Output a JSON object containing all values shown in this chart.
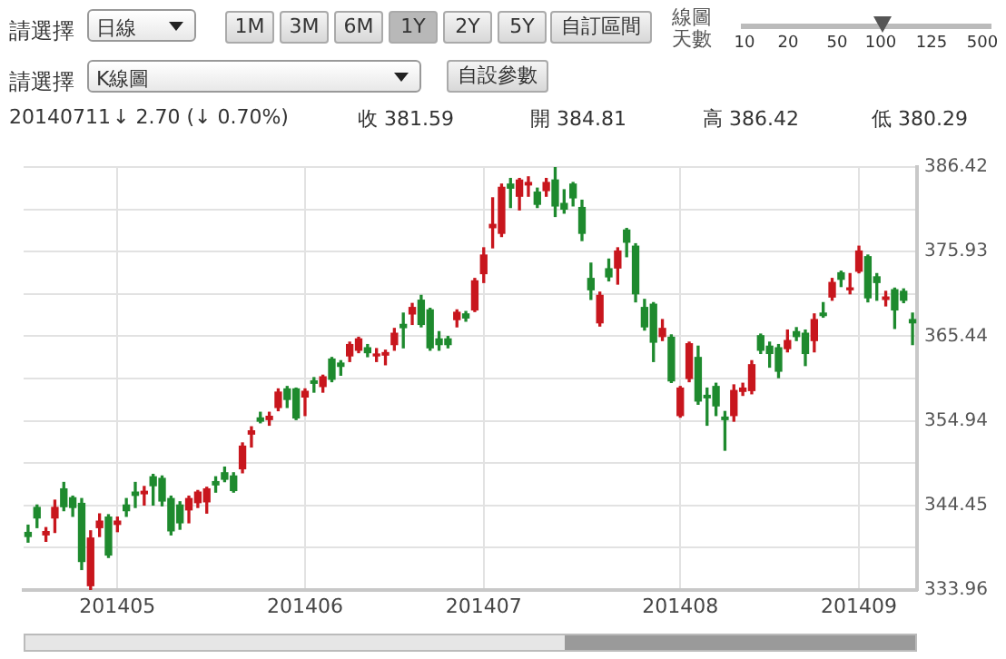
{
  "chart_data": {
    "type": "candlestick",
    "categories": [
      null,
      null,
      null,
      null,
      null,
      null,
      null,
      null,
      null,
      null,
      "201405",
      null,
      null,
      null,
      null,
      null,
      null,
      null,
      null,
      null,
      null,
      null,
      null,
      null,
      null,
      null,
      null,
      null,
      null,
      null,
      null,
      "201406",
      null,
      null,
      null,
      null,
      null,
      null,
      null,
      null,
      null,
      null,
      null,
      null,
      null,
      null,
      null,
      null,
      null,
      null,
      null,
      "201407",
      null,
      null,
      null,
      null,
      null,
      null,
      null,
      null,
      null,
      null,
      null,
      null,
      null,
      null,
      null,
      null,
      null,
      null,
      null,
      null,
      null,
      "201408",
      null,
      null,
      null,
      null,
      null,
      null,
      null,
      null,
      null,
      null,
      null,
      null,
      null,
      null,
      null,
      null,
      null,
      null,
      null,
      "201409",
      null,
      null,
      null,
      null,
      null,
      null
    ],
    "ohlc": [
      [
        341.1,
        342.0,
        339.9,
        340.6
      ],
      [
        344.2,
        344.5,
        341.7,
        342.9
      ],
      [
        340.8,
        341.7,
        340.0,
        341.2
      ],
      [
        342.9,
        345.1,
        341.1,
        344.2
      ],
      [
        346.5,
        347.3,
        343.8,
        344.3
      ],
      [
        345.4,
        345.6,
        343.1,
        344.2
      ],
      [
        344.7,
        345.3,
        336.5,
        337.5
      ],
      [
        334.5,
        341.3,
        334.0,
        340.4
      ],
      [
        341.7,
        343.4,
        340.6,
        342.5
      ],
      [
        343.0,
        343.3,
        338.0,
        338.3
      ],
      [
        342.1,
        343.0,
        341.2,
        342.5
      ],
      [
        344.5,
        345.3,
        343.1,
        343.8
      ],
      [
        346.1,
        347.3,
        344.2,
        345.7
      ],
      [
        345.9,
        346.8,
        344.5,
        346.2
      ],
      [
        348.0,
        348.3,
        344.5,
        346.9
      ],
      [
        347.8,
        348.1,
        344.4,
        345.0
      ],
      [
        345.3,
        345.6,
        340.8,
        341.3
      ],
      [
        344.5,
        344.9,
        341.5,
        342.3
      ],
      [
        343.9,
        345.6,
        342.3,
        345.3
      ],
      [
        344.8,
        346.3,
        344.2,
        346.1
      ],
      [
        344.9,
        346.7,
        343.5,
        346.5
      ],
      [
        347.4,
        348.0,
        346.1,
        347.0
      ],
      [
        348.5,
        349.2,
        347.4,
        347.7
      ],
      [
        348.1,
        348.5,
        346.1,
        346.3
      ],
      [
        349.0,
        352.2,
        348.5,
        351.8
      ],
      [
        353.3,
        354.2,
        351.7,
        353.7
      ],
      [
        355.3,
        356.0,
        354.7,
        354.9
      ],
      [
        355.1,
        356.0,
        354.4,
        355.5
      ],
      [
        356.6,
        358.9,
        356.2,
        358.5
      ],
      [
        358.9,
        359.2,
        356.6,
        357.6
      ],
      [
        358.9,
        359.0,
        355.1,
        355.3
      ],
      [
        357.9,
        358.9,
        355.6,
        358.6
      ],
      [
        359.9,
        360.3,
        358.5,
        359.6
      ],
      [
        359.2,
        360.6,
        358.5,
        360.4
      ],
      [
        362.6,
        362.8,
        359.8,
        360.1
      ],
      [
        362.1,
        362.4,
        360.6,
        361.7
      ],
      [
        363.0,
        364.7,
        362.3,
        364.4
      ],
      [
        363.7,
        365.3,
        363.4,
        365.1
      ],
      [
        364.0,
        364.4,
        362.9,
        363.4
      ],
      [
        363.0,
        363.9,
        362.3,
        363.2
      ],
      [
        363.1,
        363.7,
        361.9,
        363.4
      ],
      [
        364.4,
        366.4,
        363.7,
        365.8
      ],
      [
        366.9,
        368.3,
        364.0,
        366.5
      ],
      [
        368.2,
        369.5,
        366.9,
        369.0
      ],
      [
        369.9,
        370.5,
        366.6,
        366.9
      ],
      [
        368.7,
        368.9,
        363.7,
        364.0
      ],
      [
        365.1,
        366.0,
        363.7,
        364.4
      ],
      [
        365.1,
        365.4,
        364.0,
        364.4
      ],
      [
        367.5,
        368.7,
        366.6,
        368.4
      ],
      [
        368.2,
        368.5,
        367.3,
        367.7
      ],
      [
        368.7,
        372.6,
        368.5,
        372.3
      ],
      [
        373.2,
        376.4,
        372.1,
        375.5
      ],
      [
        378.9,
        382.6,
        376.4,
        379.3
      ],
      [
        378.2,
        384.3,
        377.8,
        383.9
      ],
      [
        384.3,
        385.0,
        381.4,
        383.8
      ],
      [
        382.8,
        385.0,
        381.1,
        384.8
      ],
      [
        384.2,
        385.2,
        382.8,
        384.5
      ],
      [
        383.3,
        383.8,
        381.4,
        381.8
      ],
      [
        383.5,
        385.0,
        382.8,
        384.5
      ],
      [
        384.81,
        386.42,
        380.29,
        381.59
      ],
      [
        381.9,
        383.6,
        380.7,
        381.2
      ],
      [
        384.3,
        384.5,
        381.6,
        382.6
      ],
      [
        381.4,
        382.3,
        377.3,
        378.2
      ],
      [
        372.6,
        374.5,
        370.0,
        371.2
      ],
      [
        367.1,
        370.9,
        366.7,
        370.5
      ],
      [
        373.8,
        375.0,
        372.3,
        372.8
      ],
      [
        373.9,
        376.4,
        371.9,
        376.0
      ],
      [
        378.6,
        378.8,
        375.3,
        377.1
      ],
      [
        376.6,
        376.9,
        369.7,
        370.7
      ],
      [
        369.0,
        370.0,
        366.2,
        366.6
      ],
      [
        369.4,
        369.6,
        362.3,
        364.7
      ],
      [
        365.4,
        367.5,
        364.9,
        366.4
      ],
      [
        365.3,
        365.6,
        359.7,
        359.9
      ],
      [
        355.6,
        359.2,
        355.4,
        359.0
      ],
      [
        360.2,
        364.7,
        359.8,
        364.5
      ],
      [
        362.8,
        364.2,
        357.0,
        357.4
      ],
      [
        358.1,
        359.0,
        354.4,
        357.8
      ],
      [
        359.2,
        359.6,
        355.6,
        356.8
      ],
      [
        355.4,
        356.1,
        351.3,
        355.1
      ],
      [
        355.6,
        359.4,
        354.9,
        358.7
      ],
      [
        358.6,
        359.6,
        358.1,
        359.0
      ],
      [
        358.7,
        362.4,
        358.3,
        361.9
      ],
      [
        365.5,
        365.7,
        363.3,
        363.7
      ],
      [
        364.2,
        364.7,
        361.6,
        363.3
      ],
      [
        364.0,
        364.4,
        360.3,
        361.1
      ],
      [
        363.9,
        366.2,
        363.5,
        364.9
      ],
      [
        366.0,
        366.5,
        364.9,
        365.4
      ],
      [
        365.8,
        366.2,
        361.8,
        363.3
      ],
      [
        364.9,
        368.2,
        363.5,
        367.5
      ],
      [
        368.3,
        369.6,
        367.8,
        368.0
      ],
      [
        370.3,
        372.6,
        369.9,
        372.1
      ],
      [
        373.3,
        373.5,
        371.6,
        372.5
      ],
      [
        371.2,
        373.2,
        370.7,
        371.4
      ],
      [
        373.5,
        376.6,
        373.3,
        376.0
      ],
      [
        375.3,
        375.5,
        369.7,
        370.2
      ],
      [
        372.8,
        373.2,
        369.9,
        372.1
      ],
      [
        370.0,
        371.0,
        369.2,
        370.3
      ],
      [
        371.2,
        371.4,
        366.4,
        368.7
      ],
      [
        371.0,
        371.3,
        369.6,
        369.9
      ],
      [
        367.5,
        368.3,
        364.4,
        367.1
      ]
    ],
    "colors": [
      "#1e8a2e",
      "#1e8a2e",
      "#c8161d",
      "#c8161d",
      "#1e8a2e",
      "#1e8a2e",
      "#1e8a2e",
      "#c8161d",
      "#c8161d",
      "#1e8a2e",
      "#c8161d",
      "#1e8a2e",
      "#1e8a2e",
      "#c8161d",
      "#1e8a2e",
      "#1e8a2e",
      "#1e8a2e",
      "#1e8a2e",
      "#c8161d",
      "#c8161d",
      "#c8161d",
      "#1e8a2e",
      "#1e8a2e",
      "#1e8a2e",
      "#c8161d",
      "#c8161d",
      "#1e8a2e",
      "#c8161d",
      "#c8161d",
      "#1e8a2e",
      "#1e8a2e",
      "#c8161d",
      "#1e8a2e",
      "#c8161d",
      "#1e8a2e",
      "#1e8a2e",
      "#c8161d",
      "#c8161d",
      "#1e8a2e",
      "#c8161d",
      "#c8161d",
      "#c8161d",
      "#1e8a2e",
      "#c8161d",
      "#1e8a2e",
      "#1e8a2e",
      "#1e8a2e",
      "#1e8a2e",
      "#c8161d",
      "#1e8a2e",
      "#c8161d",
      "#c8161d",
      "#c8161d",
      "#c8161d",
      "#1e8a2e",
      "#c8161d",
      "#c8161d",
      "#1e8a2e",
      "#c8161d",
      "#1e8a2e",
      "#1e8a2e",
      "#1e8a2e",
      "#1e8a2e",
      "#1e8a2e",
      "#c8161d",
      "#1e8a2e",
      "#c8161d",
      "#1e8a2e",
      "#1e8a2e",
      "#1e8a2e",
      "#1e8a2e",
      "#c8161d",
      "#1e8a2e",
      "#c8161d",
      "#c8161d",
      "#1e8a2e",
      "#1e8a2e",
      "#1e8a2e",
      "#1e8a2e",
      "#c8161d",
      "#c8161d",
      "#c8161d",
      "#1e8a2e",
      "#1e8a2e",
      "#1e8a2e",
      "#c8161d",
      "#1e8a2e",
      "#1e8a2e",
      "#c8161d",
      "#1e8a2e",
      "#c8161d",
      "#1e8a2e",
      "#c8161d",
      "#c8161d",
      "#1e8a2e",
      "#1e8a2e",
      "#c8161d",
      "#1e8a2e",
      "#1e8a2e",
      "#1e8a2e"
    ],
    "ylim": [
      333.96,
      386.42
    ],
    "yticks": [
      333.96,
      {
        "value": 339.205,
        "label": null
      },
      344.45,
      {
        "value": 349.695,
        "label": null
      },
      354.94,
      {
        "value": 360.19,
        "label": null
      },
      365.44,
      {
        "value": 370.685,
        "label": null
      },
      375.93,
      {
        "value": 381.175,
        "label": null
      },
      386.42
    ],
    "grid": true,
    "annotations": [
      "請選擇",
      "日線",
      "1M",
      "3M",
      "6M",
      "1Y",
      "2Y",
      "5Y",
      "自訂區間",
      "線圖天數",
      "10",
      "20",
      "50",
      "100",
      "125",
      "500",
      "請選擇",
      "K線圖",
      "自設參數",
      "20140711",
      "↓ 2.70 (↓ 0.70%)",
      "收 381.59",
      "開 384.81",
      "高 386.42",
      "低 380.29"
    ]
  }
}
